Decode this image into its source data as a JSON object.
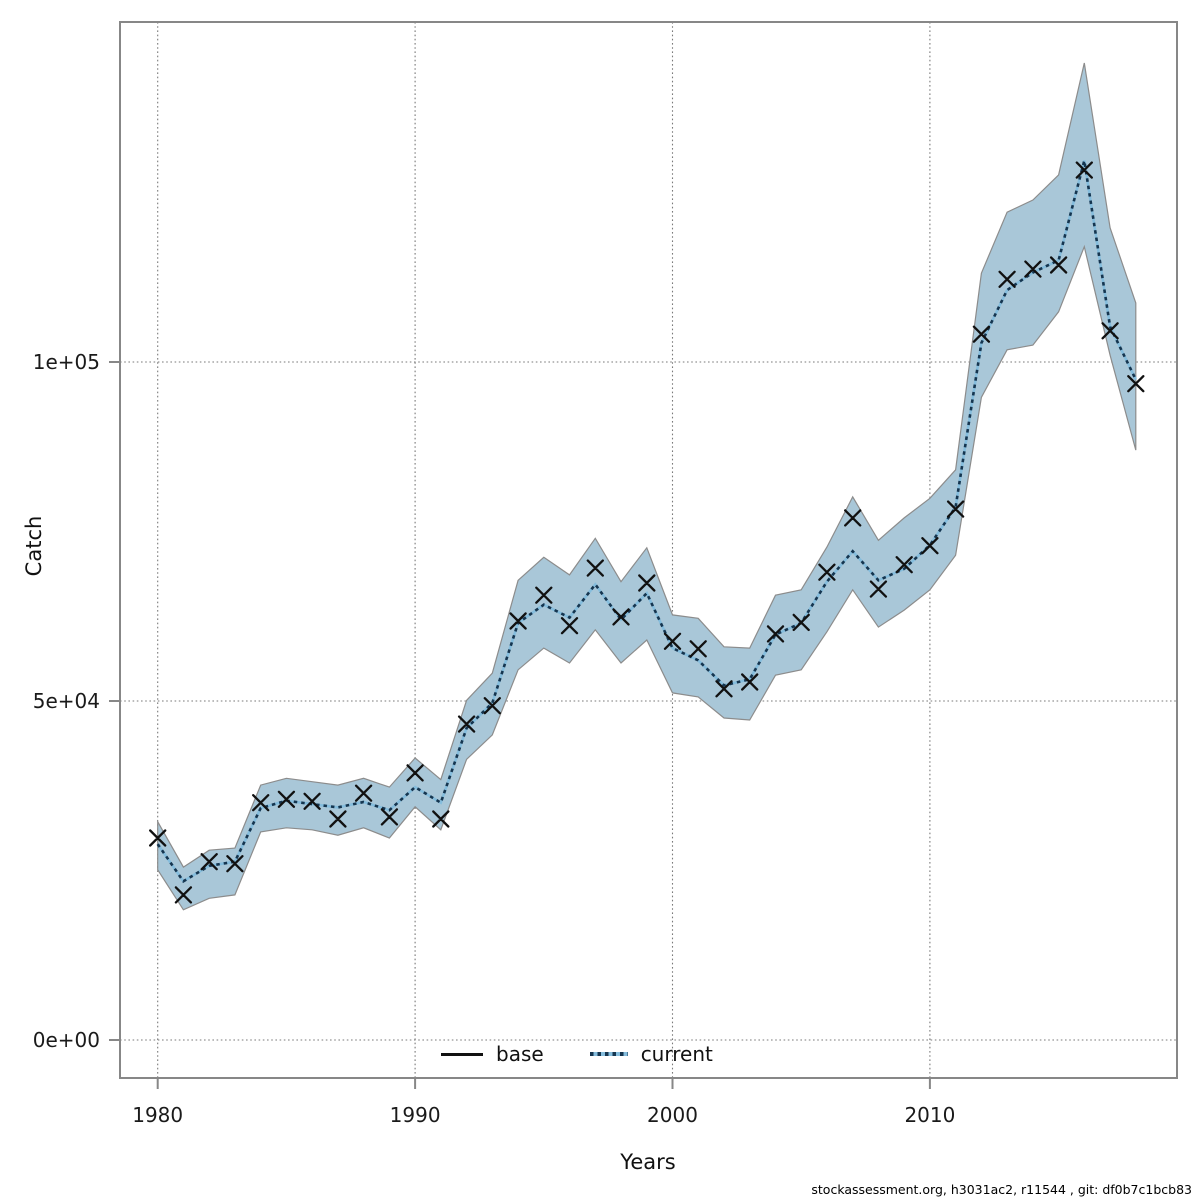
{
  "figure": {
    "footer": "stockassessment.org, h3031ac2, r11544 , git: df0b7c1bcb83"
  },
  "chart_data": {
    "type": "line",
    "title": "",
    "xlabel": "Years",
    "ylabel": "Catch",
    "grid": "dotted",
    "xlim": [
      1978.5,
      2019.6
    ],
    "ylim": [
      -5600,
      150150
    ],
    "x_ticks": {
      "values": [
        1980,
        1990,
        2000,
        2010
      ],
      "labels": [
        "1980",
        "1990",
        "2000",
        "2010"
      ]
    },
    "y_ticks": {
      "values": [
        0,
        50000,
        100000
      ],
      "labels": [
        "0e+00",
        "5e+04",
        "1e+05"
      ]
    },
    "legend": {
      "position": "bottom-center-inside",
      "entries": [
        {
          "label": "base",
          "style": "solid-black-line",
          "marker": "x"
        },
        {
          "label": "current",
          "style": "dotted-blue-line",
          "band": "shaded"
        }
      ]
    },
    "x": [
      1980,
      1981,
      1982,
      1983,
      1984,
      1985,
      1986,
      1987,
      1988,
      1989,
      1990,
      1991,
      1992,
      1993,
      1994,
      1995,
      1996,
      1997,
      1998,
      1999,
      2000,
      2001,
      2002,
      2003,
      2004,
      2005,
      2006,
      2007,
      2008,
      2009,
      2010,
      2011,
      2012,
      2013,
      2014,
      2015,
      2016,
      2017,
      2018
    ],
    "series": [
      {
        "name": "base",
        "marker": "x",
        "values": [
          29800,
          21400,
          26300,
          26000,
          35000,
          35500,
          35200,
          32600,
          36400,
          32900,
          39400,
          32600,
          46600,
          49300,
          61800,
          65600,
          61100,
          69600,
          62400,
          67400,
          58800,
          57700,
          51800,
          52800,
          59900,
          61600,
          69000,
          77000,
          66500,
          70100,
          72900,
          78300,
          104100,
          112200,
          113700,
          114300,
          128300,
          104600,
          96800
        ]
      },
      {
        "name": "current",
        "line": "dotted",
        "values": [
          28900,
          23400,
          25700,
          26300,
          34200,
          35300,
          34800,
          34300,
          35100,
          33900,
          37300,
          35000,
          46000,
          49700,
          61500,
          64200,
          62300,
          67200,
          62000,
          65900,
          57800,
          56000,
          52300,
          53200,
          59800,
          61500,
          67600,
          72100,
          67800,
          69500,
          73000,
          78600,
          102800,
          110600,
          113200,
          115000,
          129700,
          105200,
          97400
        ],
        "band_lower": [
          25100,
          19200,
          20900,
          21400,
          30700,
          31300,
          31000,
          30200,
          31300,
          29800,
          34400,
          31000,
          41400,
          45000,
          54600,
          57800,
          55600,
          60500,
          55600,
          59000,
          51200,
          50600,
          47500,
          47200,
          53800,
          54600,
          60200,
          66400,
          60900,
          63400,
          66400,
          71500,
          94800,
          101800,
          102500,
          107400,
          117000,
          101000,
          87000
        ],
        "band_upper": [
          32200,
          25500,
          28000,
          28300,
          37600,
          38600,
          38100,
          37600,
          38600,
          37300,
          41600,
          38400,
          50100,
          54100,
          67800,
          71200,
          68600,
          74000,
          67600,
          72600,
          62700,
          62200,
          58000,
          57800,
          65600,
          66400,
          72700,
          80100,
          73700,
          77000,
          79900,
          84100,
          113100,
          122100,
          123900,
          127600,
          144100,
          119800,
          108700
        ]
      }
    ],
    "colors": {
      "band_fill": "#a9c7d8",
      "band_edge": "#8c8c8c",
      "current_line_blue": "#85bddd",
      "current_line_dash": "#15354f",
      "marker": "#111111",
      "grid": "#7a7a7a",
      "frame": "#878787",
      "text": "#1a1a1a"
    }
  }
}
